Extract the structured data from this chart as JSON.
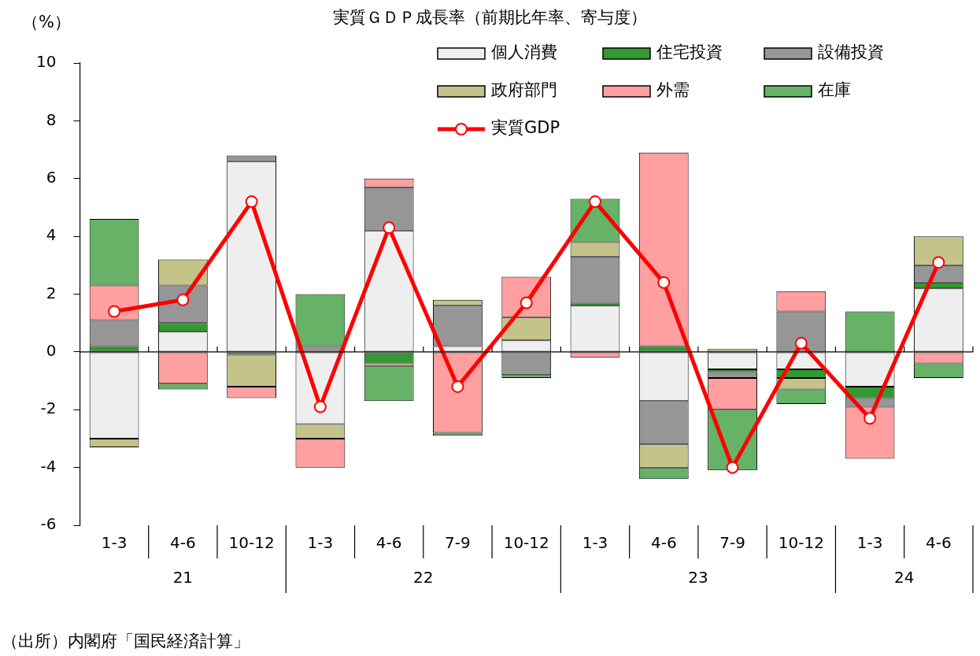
{
  "chart_data": {
    "type": "bar",
    "title": "実質ＧＤＰ成長率（前期比年率、寄与度）",
    "ylabel": "（%）",
    "categories": [
      "1-3",
      "4-6",
      "10-12",
      "1-3",
      "4-6",
      "7-9",
      "10-12",
      "1-3",
      "4-6",
      "7-9",
      "10-12",
      "1-3",
      "4-6"
    ],
    "stacked": true,
    "series": [
      {
        "name": "個人消費",
        "color": "#eeeeee",
        "values": [
          -3.0,
          0.7,
          6.6,
          -2.5,
          4.2,
          0.2,
          0.4,
          1.6,
          -1.7,
          -0.6,
          -0.6,
          -1.2,
          2.2
        ]
      },
      {
        "name": "住宅投資",
        "color": "#339933",
        "values": [
          0.2,
          0.3,
          -0.1,
          null,
          -0.4,
          null,
          null,
          0.1,
          0.2,
          -0.1,
          -0.3,
          -0.4,
          0.2
        ]
      },
      {
        "name": "設備投資",
        "color": "#969696",
        "values": [
          0.9,
          1.3,
          0.2,
          0.2,
          1.5,
          1.4,
          -0.8,
          1.6,
          -1.5,
          -0.2,
          1.4,
          -0.3,
          0.6
        ]
      },
      {
        "name": "政府部門",
        "color": "#c4c48a",
        "values": [
          -0.3,
          0.9,
          -1.1,
          -0.5,
          -0.1,
          0.2,
          0.8,
          0.5,
          -0.8,
          0.1,
          -0.4,
          null,
          1.0
        ]
      },
      {
        "name": "外需",
        "color": "#ff9f9f",
        "values": [
          1.2,
          -1.1,
          -0.4,
          -1.0,
          0.3,
          -2.8,
          1.4,
          -0.2,
          6.7,
          -1.1,
          0.7,
          -1.8,
          -0.4
        ]
      },
      {
        "name": "在庫",
        "color": "#66b266",
        "values": [
          2.3,
          -0.2,
          null,
          1.8,
          -1.2,
          -0.1,
          -0.1,
          1.5,
          -0.4,
          -2.1,
          -0.5,
          1.4,
          -0.5
        ]
      },
      {
        "name": "実質GDP",
        "type": "line",
        "color": "#ff0000",
        "marker": "circle",
        "values": [
          1.4,
          1.8,
          5.2,
          -1.9,
          4.3,
          -1.2,
          1.7,
          5.2,
          2.4,
          -4.0,
          0.3,
          -2.3,
          3.1
        ]
      }
    ],
    "ylim": [
      -6,
      10
    ],
    "yticks": [
      -6,
      -4,
      -2,
      0,
      2,
      4,
      6,
      8,
      10
    ],
    "grid": false,
    "legend": "top right",
    "ref_lines": [
      {
        "axis": "y",
        "value": 0,
        "color": "#000000"
      }
    ],
    "annotations": [
      "21",
      "22",
      "23",
      "24",
      "（出所）内閣府「国民経済計算」"
    ]
  }
}
